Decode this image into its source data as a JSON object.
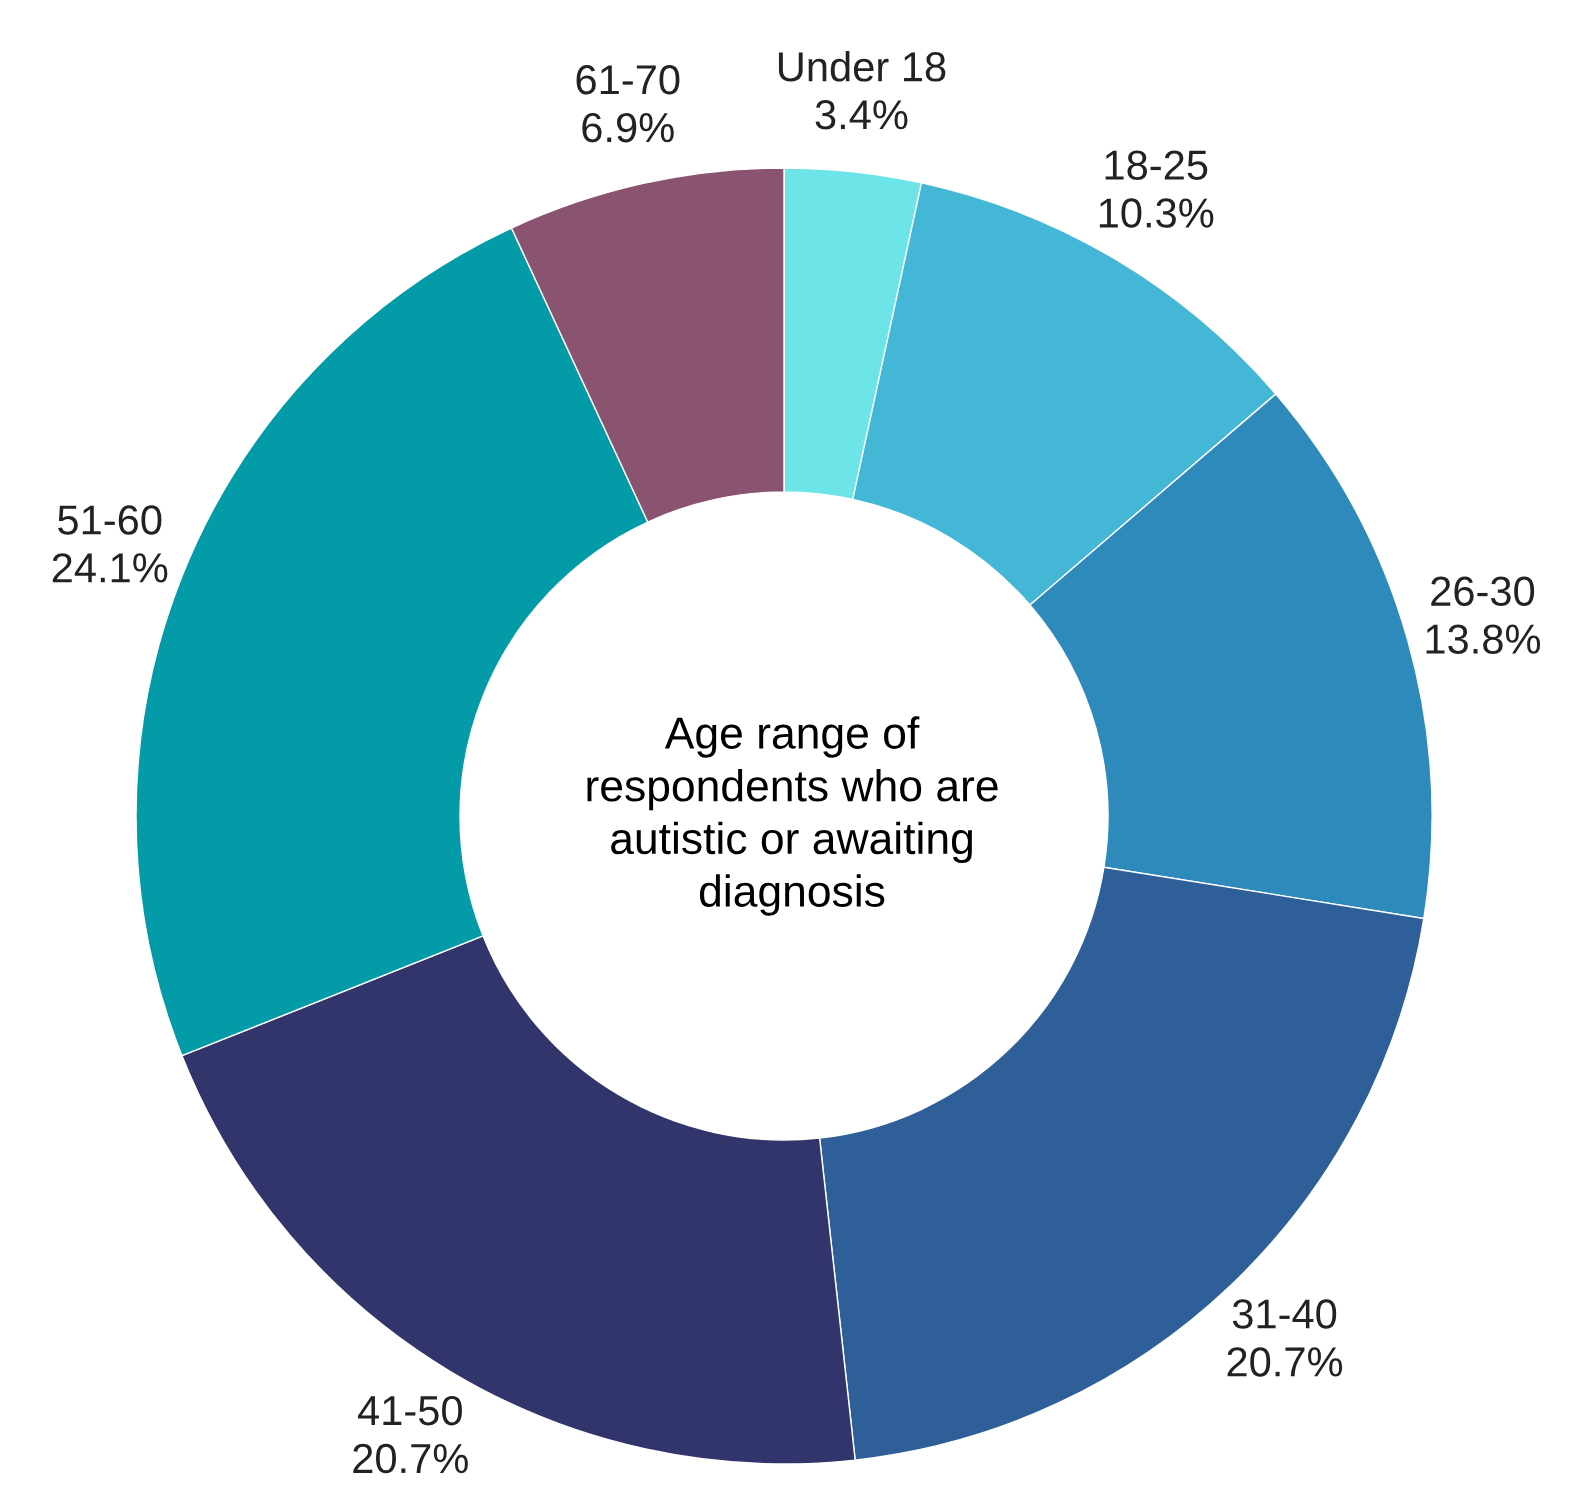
{
  "chart_data": {
    "type": "donut",
    "title": "Age range of\nrespondents who are\nautistic or awaiting\ndiagnosis",
    "categories": [
      "Under 18",
      "18-25",
      "26-30",
      "31-40",
      "41-50",
      "51-60",
      "61-70"
    ],
    "values": [
      3.4,
      10.3,
      13.8,
      20.7,
      20.7,
      24.1,
      6.9
    ],
    "value_labels": [
      "3.4%",
      "10.3%",
      "13.8%",
      "20.7%",
      "20.7%",
      "24.1%",
      "6.9%"
    ],
    "colors": [
      "#6ce4e8",
      "#44b6d6",
      "#2e8aba",
      "#2e5f98",
      "#31356b",
      "#039ba8",
      "#8a5370"
    ],
    "legend": false
  }
}
